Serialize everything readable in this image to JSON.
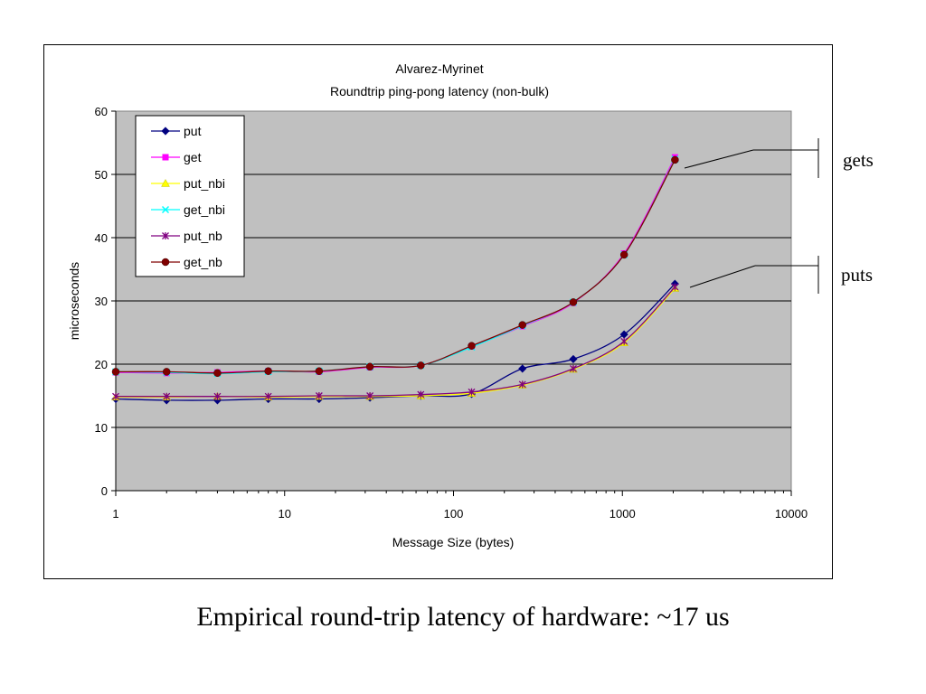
{
  "chart_data": {
    "type": "line",
    "title": "Alvarez-Myrinet",
    "subtitle": "Roundtrip ping-pong latency (non-bulk)",
    "xlabel": "Message Size (bytes)",
    "ylabel": "microseconds",
    "xscale": "log",
    "xlim": [
      1,
      10000
    ],
    "ylim": [
      0,
      60
    ],
    "x_ticks": [
      1,
      10,
      100,
      1000,
      10000
    ],
    "x_tick_labels": [
      "1",
      "10",
      "100",
      "1000",
      "10000"
    ],
    "y_ticks": [
      0,
      10,
      20,
      30,
      40,
      50,
      60
    ],
    "y_tick_labels": [
      "0",
      "10",
      "20",
      "30",
      "40",
      "50",
      "60"
    ],
    "grid": "horizontal",
    "plot_background": "#c0c0c0",
    "legend_position": "top-left",
    "x": [
      1,
      2,
      4,
      8,
      16,
      32,
      64,
      128,
      256,
      512,
      1024,
      2048
    ],
    "series": [
      {
        "name": "put",
        "color": "#000080",
        "marker": "diamond",
        "values": [
          14.5,
          14.3,
          14.3,
          14.5,
          14.5,
          14.7,
          15.0,
          15.3,
          19.3,
          20.8,
          24.7,
          32.7
        ]
      },
      {
        "name": "get",
        "color": "#ff00ff",
        "marker": "square",
        "values": [
          18.7,
          18.6,
          18.7,
          18.9,
          18.8,
          19.5,
          19.8,
          22.8,
          26.0,
          29.7,
          37.5,
          52.7
        ]
      },
      {
        "name": "put_nbi",
        "color": "#ffff00",
        "marker": "triangle",
        "values": [
          14.8,
          14.8,
          14.9,
          14.8,
          14.9,
          14.9,
          15.0,
          15.4,
          16.7,
          19.2,
          23.4,
          32.0
        ]
      },
      {
        "name": "get_nbi",
        "color": "#00ffff",
        "marker": "x",
        "values": [
          18.8,
          18.7,
          18.5,
          18.8,
          18.9,
          19.6,
          19.8,
          22.7,
          26.1,
          29.8,
          37.3,
          52.4
        ]
      },
      {
        "name": "put_nb",
        "color": "#800080",
        "marker": "star",
        "values": [
          14.9,
          14.9,
          14.9,
          14.9,
          15.0,
          15.0,
          15.2,
          15.6,
          16.8,
          19.3,
          23.6,
          32.2
        ]
      },
      {
        "name": "get_nb",
        "color": "#800000",
        "marker": "circle",
        "values": [
          18.8,
          18.8,
          18.6,
          18.9,
          18.9,
          19.6,
          19.8,
          22.9,
          26.2,
          29.8,
          37.3,
          52.3
        ]
      }
    ],
    "annotations": [
      {
        "text": "gets",
        "points_to_y": 51
      },
      {
        "text": "puts",
        "points_to_y": 32
      }
    ]
  },
  "caption": "Empirical round-trip latency of hardware: ~17 us"
}
